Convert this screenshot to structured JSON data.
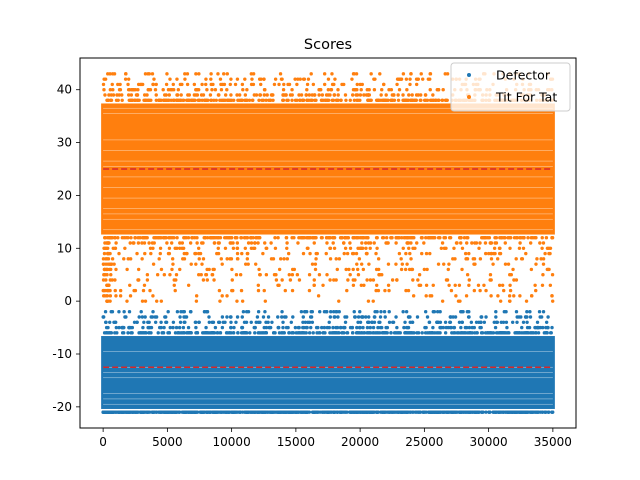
{
  "chart_data": {
    "type": "scatter",
    "title": "Scores",
    "xlabel": "",
    "ylabel": "",
    "xlim": [
      -1800,
      36800
    ],
    "ylim": [
      -24,
      46
    ],
    "xticks": [
      0,
      5000,
      10000,
      15000,
      20000,
      25000,
      30000,
      35000
    ],
    "yticks": [
      -20,
      -10,
      0,
      10,
      20,
      30,
      40
    ],
    "grid": false,
    "legend": {
      "position": "top-right"
    },
    "series": [
      {
        "name": "Defector",
        "color": "#1f77b4",
        "x_range": [
          0,
          35000
        ],
        "y_band": [
          -20,
          -7
        ],
        "y_outlier_range": [
          -21,
          -2
        ],
        "mean": -12.5,
        "mean_line_color": "#d62728"
      },
      {
        "name": "Tit For Tat",
        "color": "#ff7f0e",
        "x_range": [
          0,
          35000
        ],
        "y_band": [
          13,
          37
        ],
        "y_outlier_range": [
          0,
          43
        ],
        "mean": 25,
        "mean_line_color": "#d62728"
      }
    ]
  }
}
